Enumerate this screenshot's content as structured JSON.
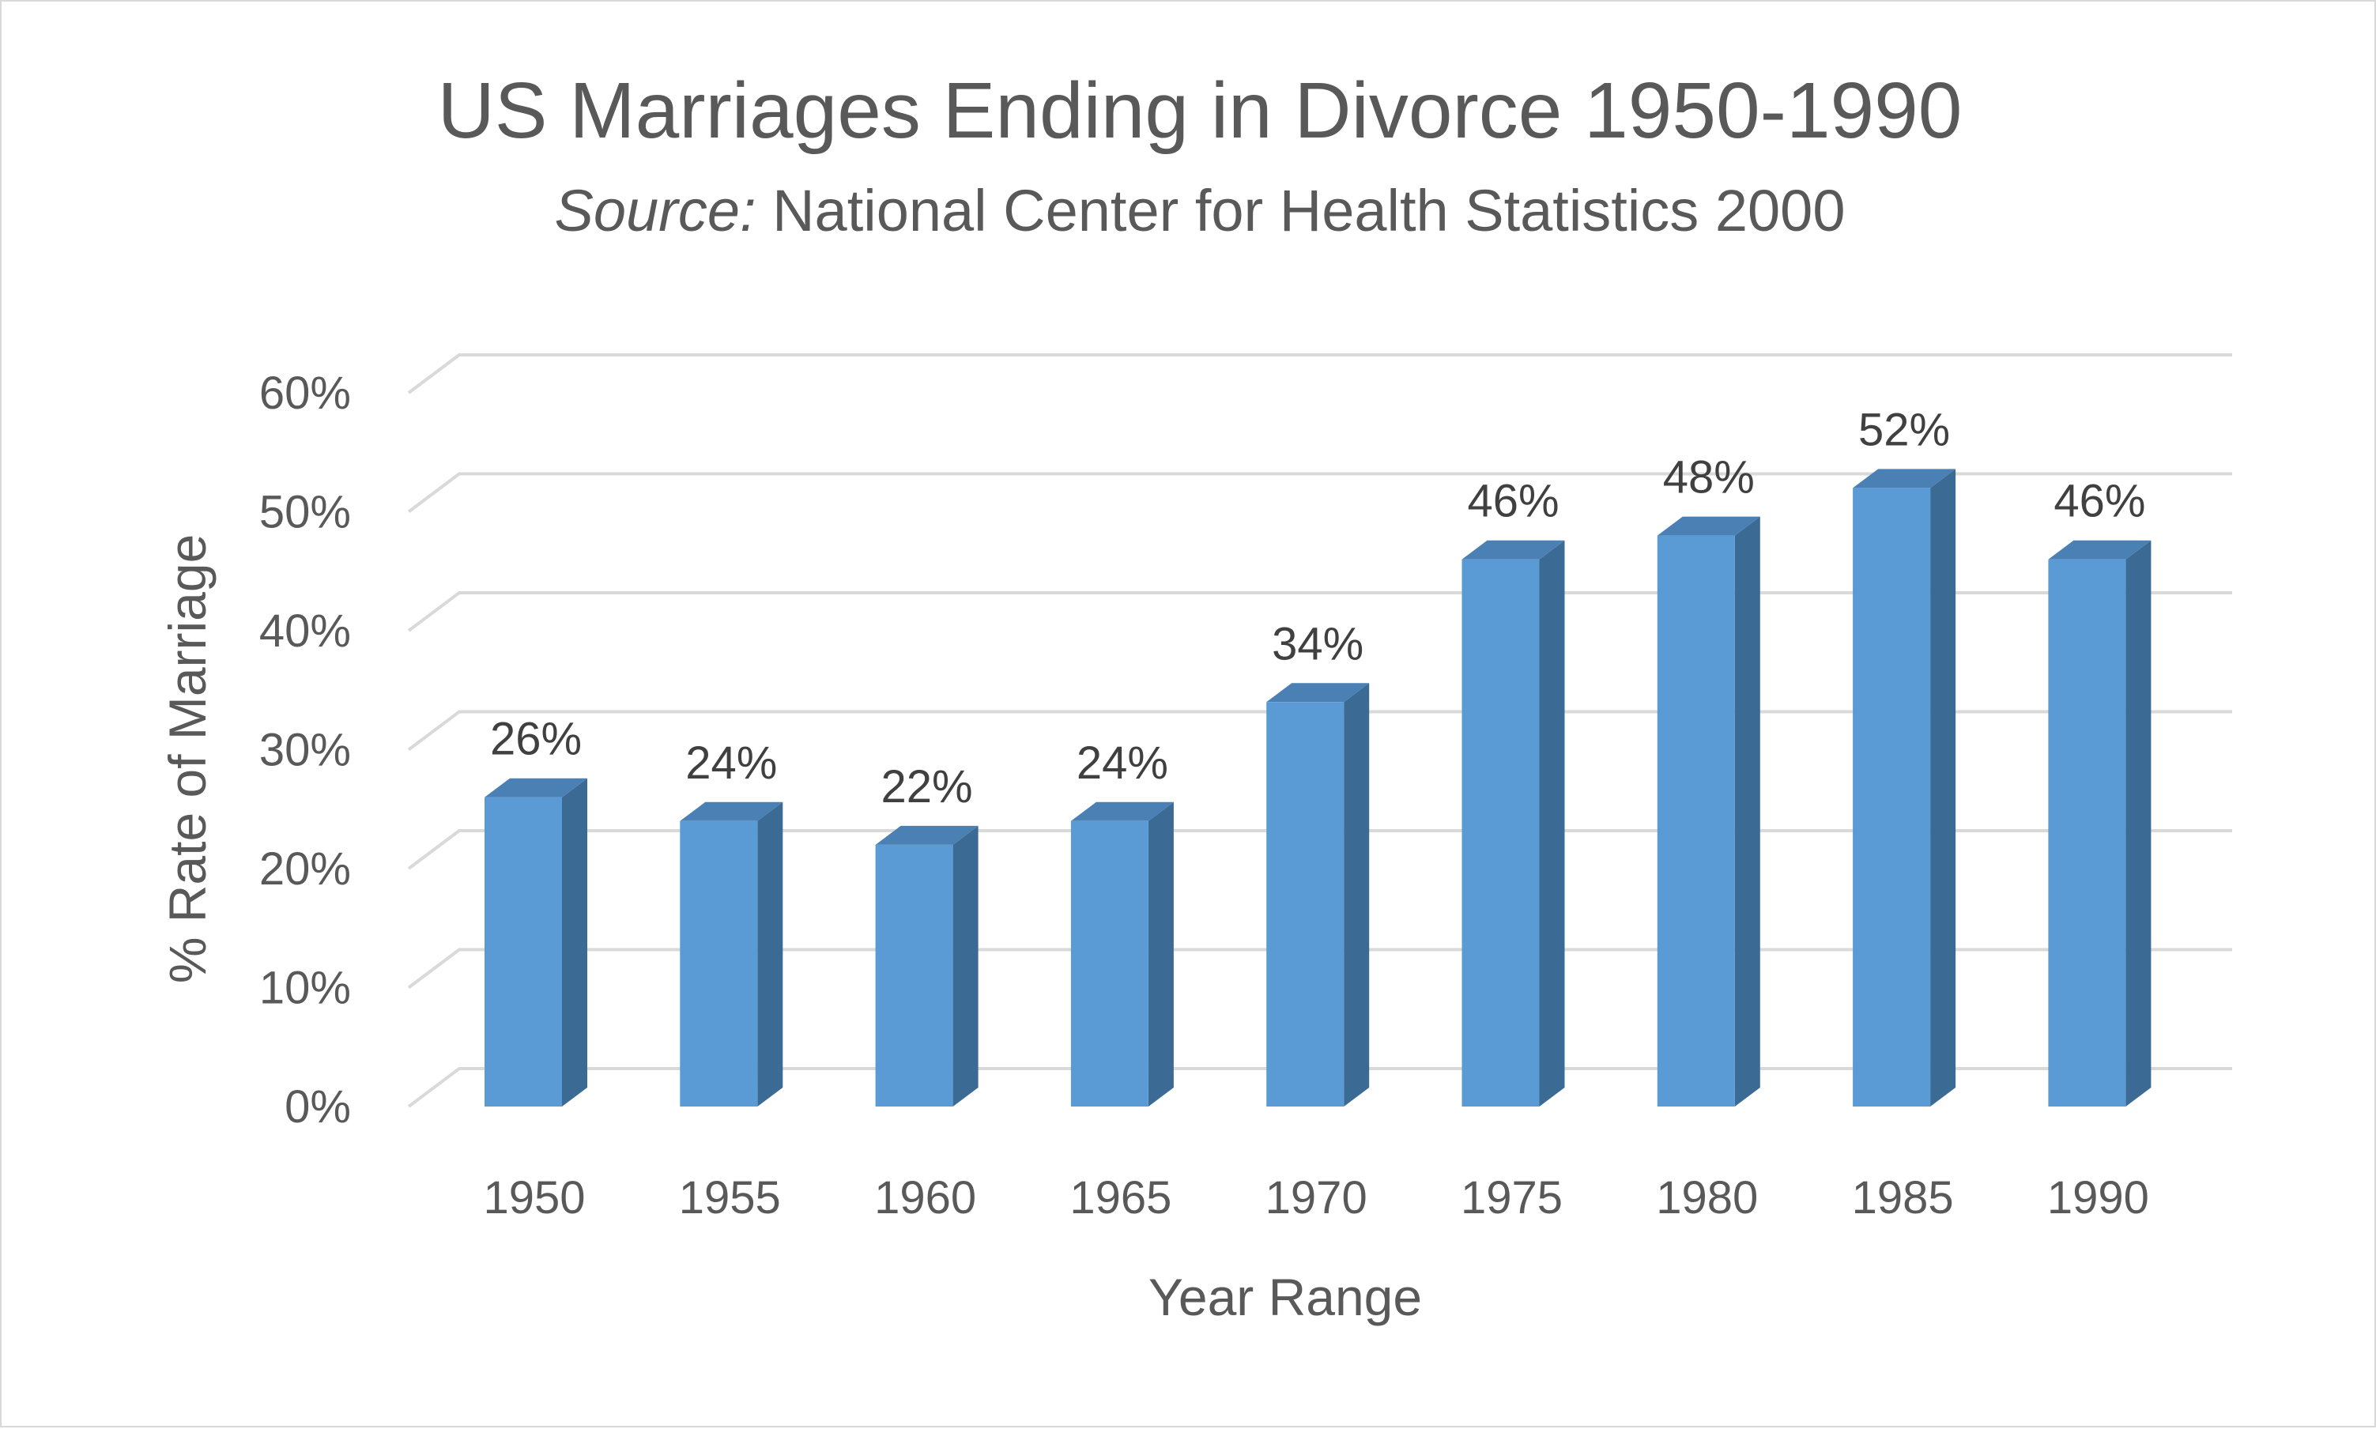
{
  "chart_data": {
    "type": "bar",
    "title": "US Marriages Ending in Divorce 1950-1990",
    "subtitle_prefix": "Source:",
    "subtitle_rest": " National Center for Health Statistics 2000",
    "xlabel": "Year Range",
    "ylabel": "% Rate of Marriage",
    "categories": [
      "1950",
      "1955",
      "1960",
      "1965",
      "1970",
      "1975",
      "1980",
      "1985",
      "1990"
    ],
    "values": [
      26,
      24,
      22,
      24,
      34,
      46,
      48,
      52,
      46
    ],
    "data_labels": [
      "26%",
      "24%",
      "22%",
      "24%",
      "34%",
      "46%",
      "48%",
      "52%",
      "46%"
    ],
    "ylim": [
      0,
      60
    ],
    "y_ticks": [
      0,
      10,
      20,
      30,
      40,
      50,
      60
    ],
    "y_tick_labels": [
      "0%",
      "10%",
      "20%",
      "30%",
      "40%",
      "50%",
      "60%"
    ],
    "grid": true,
    "legend": "none",
    "colors": {
      "bar_front": "#5b9bd5",
      "bar_side": "#3b6b94",
      "bar_top": "#4a80b4",
      "gridline": "#d9d9d9",
      "text": "#595959"
    }
  }
}
